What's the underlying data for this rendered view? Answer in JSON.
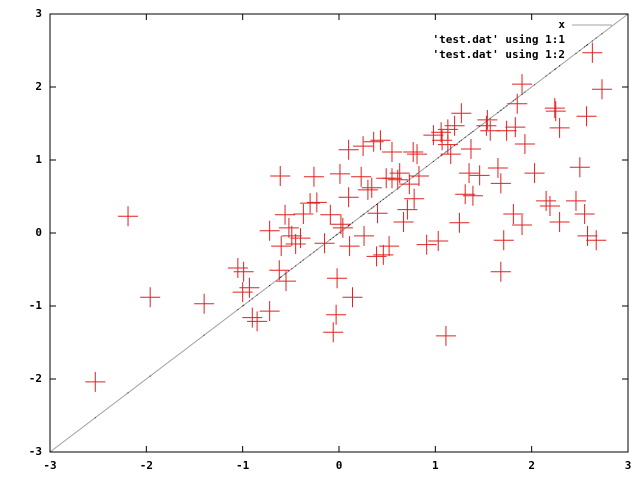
{
  "chart_data": {
    "type": "scatter",
    "xlim": [
      -3,
      3
    ],
    "ylim": [
      -3,
      3
    ],
    "xticks": [
      -3,
      -2,
      -1,
      0,
      1,
      2,
      3
    ],
    "yticks": [
      -3,
      -2,
      -1,
      0,
      1,
      2,
      3
    ],
    "legend": "top-right",
    "x": [
      -2.53,
      -2.19,
      -1.96,
      -1.4,
      -1.05,
      -0.99,
      -1.0,
      -0.93,
      -0.9,
      -0.85,
      -0.72,
      -0.72,
      -0.61,
      -0.62,
      -0.6,
      -0.56,
      -0.55,
      -0.52,
      -0.49,
      -0.45,
      -0.4,
      -0.37,
      -0.3,
      -0.26,
      -0.23,
      -0.15,
      -0.09,
      -0.06,
      -0.03,
      -0.02,
      0.01,
      0.02,
      0.04,
      0.1,
      0.1,
      0.11,
      0.14,
      0.23,
      0.26,
      0.25,
      0.3,
      0.34,
      0.36,
      0.39,
      0.4,
      0.43,
      0.46,
      0.49,
      0.52,
      0.55,
      0.55,
      0.61,
      0.63,
      0.67,
      0.71,
      0.73,
      0.77,
      0.78,
      0.81,
      0.83,
      0.91,
      0.98,
      1.03,
      1.06,
      1.07,
      1.11,
      1.13,
      1.13,
      1.16,
      1.2,
      1.25,
      1.27,
      1.31,
      1.35,
      1.37,
      1.39,
      1.46,
      1.53,
      1.54,
      1.57,
      1.65,
      1.68,
      1.68,
      1.71,
      1.74,
      1.81,
      1.83,
      1.85,
      1.9,
      1.9,
      1.93,
      2.03,
      2.15,
      2.19,
      2.24,
      2.25,
      2.29,
      2.29,
      2.46,
      2.5,
      2.55,
      2.57,
      2.63,
      2.58,
      2.67,
      2.73
    ],
    "series": [
      {
        "name": "x",
        "color": "#a0a0a0",
        "style": "line",
        "x": [
          -3,
          3
        ],
        "values": [
          -3,
          3
        ]
      },
      {
        "name": "'test.dat' using 1:1",
        "color": "#202020",
        "style": "dots",
        "values": [
          -2.53,
          -2.19,
          -1.96,
          -1.4,
          -1.05,
          -0.99,
          -1.0,
          -0.93,
          -0.9,
          -0.85,
          -0.72,
          -0.72,
          -0.61,
          -0.62,
          -0.6,
          -0.56,
          -0.55,
          -0.52,
          -0.49,
          -0.45,
          -0.4,
          -0.37,
          -0.3,
          -0.26,
          -0.23,
          -0.15,
          -0.09,
          -0.06,
          -0.03,
          -0.02,
          0.01,
          0.02,
          0.04,
          0.1,
          0.1,
          0.11,
          0.14,
          0.23,
          0.26,
          0.25,
          0.3,
          0.34,
          0.36,
          0.39,
          0.4,
          0.43,
          0.46,
          0.49,
          0.52,
          0.55,
          0.55,
          0.61,
          0.63,
          0.67,
          0.71,
          0.73,
          0.77,
          0.78,
          0.81,
          0.83,
          0.91,
          0.98,
          1.03,
          1.06,
          1.07,
          1.11,
          1.13,
          1.13,
          1.16,
          1.2,
          1.25,
          1.27,
          1.31,
          1.35,
          1.37,
          1.39,
          1.46,
          1.53,
          1.54,
          1.57,
          1.65,
          1.68,
          1.68,
          1.71,
          1.74,
          1.81,
          1.83,
          1.85,
          1.9,
          1.9,
          1.93,
          2.03,
          2.15,
          2.19,
          2.24,
          2.25,
          2.29,
          2.29,
          2.46,
          2.5,
          2.55,
          2.57,
          2.63,
          2.58,
          2.67,
          2.73
        ]
      },
      {
        "name": "'test.dat' using 1:2",
        "color": "#e02020",
        "style": "crosses",
        "values": [
          -2.04,
          0.23,
          -0.88,
          -0.97,
          -0.48,
          -0.53,
          -0.81,
          -0.75,
          -1.16,
          -1.21,
          -1.07,
          0.03,
          0.78,
          -0.51,
          -0.18,
          0.25,
          -0.66,
          0.07,
          -0.04,
          -0.15,
          -0.07,
          0.26,
          0.41,
          0.77,
          0.42,
          -0.14,
          0.25,
          -1.36,
          -1.12,
          -0.62,
          0.81,
          0.12,
          0.07,
          1.14,
          0.49,
          -0.18,
          -0.88,
          0.77,
          -0.04,
          1.19,
          0.59,
          0.62,
          1.25,
          -0.32,
          0.27,
          1.27,
          -0.3,
          0.75,
          -0.18,
          1.11,
          0.75,
          0.73,
          0.82,
          0.15,
          0.32,
          0.67,
          1.11,
          0.47,
          1.08,
          0.78,
          -0.16,
          1.34,
          -0.11,
          1.38,
          1.27,
          -1.41,
          1.21,
          1.42,
          1.08,
          1.47,
          0.14,
          1.64,
          0.53,
          0.82,
          1.15,
          0.51,
          0.79,
          1.47,
          1.55,
          1.4,
          0.89,
          -0.53,
          0.68,
          -0.1,
          1.4,
          0.26,
          1.45,
          1.77,
          0.11,
          2.04,
          1.22,
          0.82,
          0.44,
          0.37,
          1.71,
          1.67,
          1.44,
          0.15,
          0.44,
          0.9,
          0.26,
          1.6,
          2.47,
          -0.04,
          -0.1,
          1.97
        ]
      }
    ]
  }
}
